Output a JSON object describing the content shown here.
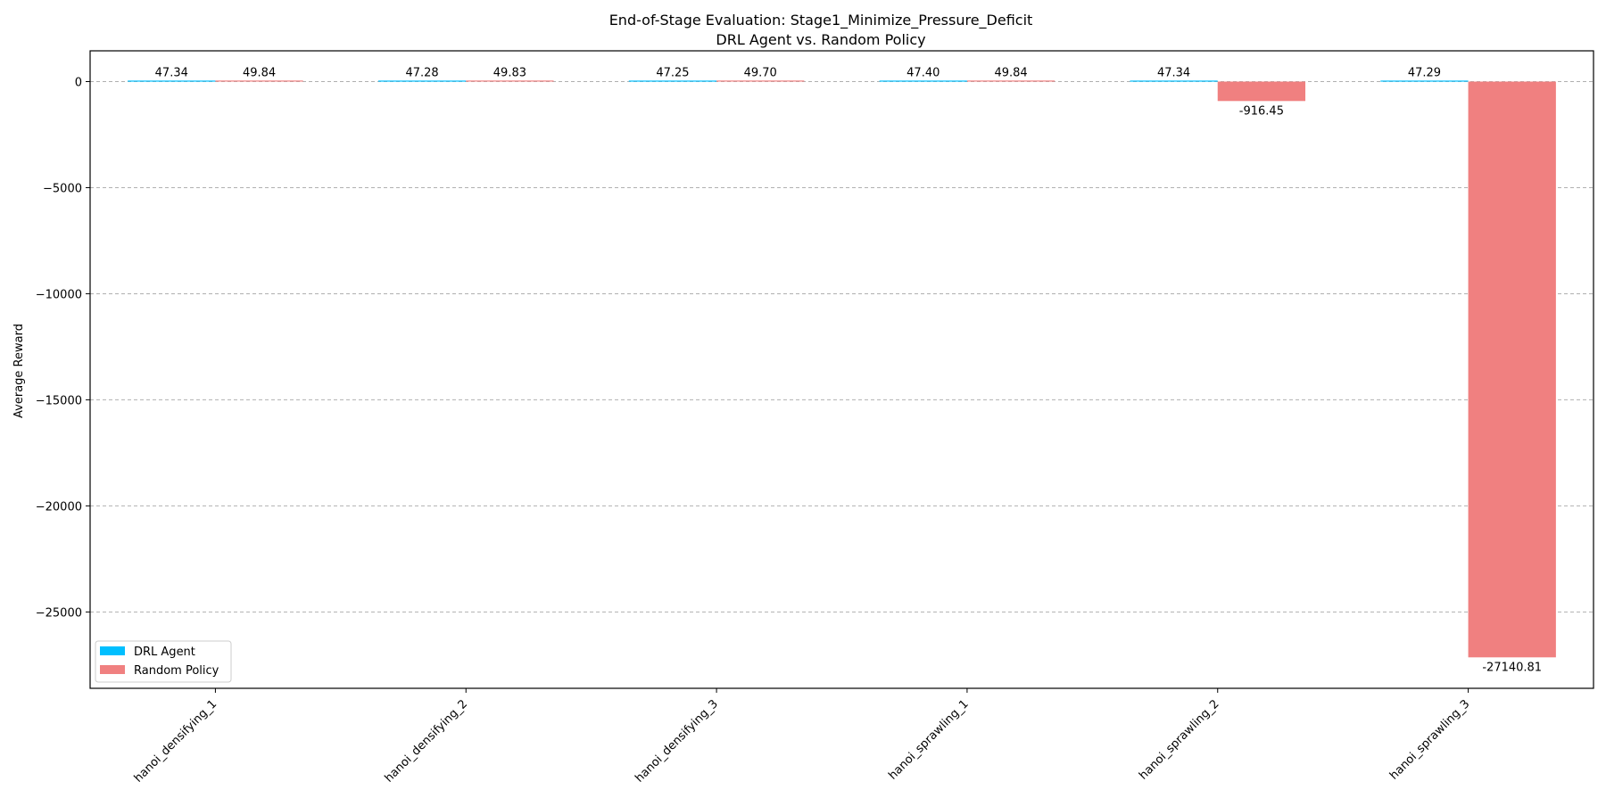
{
  "chart_data": {
    "type": "bar",
    "title": "End-of-Stage Evaluation: Stage1_Minimize_Pressure_Deficit",
    "subtitle": "DRL Agent vs. Random Policy",
    "xlabel": "",
    "ylabel": "Average Reward",
    "categories": [
      "hanoi_densifying_1",
      "hanoi_densifying_2",
      "hanoi_densifying_3",
      "hanoi_sprawling_1",
      "hanoi_sprawling_2",
      "hanoi_sprawling_3"
    ],
    "series": [
      {
        "name": "DRL Agent",
        "color": "#00bfff",
        "values": [
          47.34,
          47.28,
          47.25,
          47.4,
          47.34,
          47.29
        ],
        "labels": [
          "47.34",
          "47.28",
          "47.25",
          "47.40",
          "47.34",
          "47.29"
        ]
      },
      {
        "name": "Random Policy",
        "color": "#f08080",
        "values": [
          49.84,
          49.83,
          49.7,
          49.84,
          -916.45,
          -27140.81
        ],
        "labels": [
          "49.84",
          "49.83",
          "49.70",
          "49.84",
          "-916.45",
          "-27140.81"
        ]
      }
    ],
    "ylim": [
      -28600,
      1450
    ],
    "yticks": [
      0,
      -5000,
      -10000,
      -15000,
      -20000,
      -25000
    ],
    "ytick_labels": [
      "0",
      "−5000",
      "−10000",
      "−15000",
      "−20000",
      "−25000"
    ],
    "grid": true,
    "legend_position": "lower-left"
  }
}
